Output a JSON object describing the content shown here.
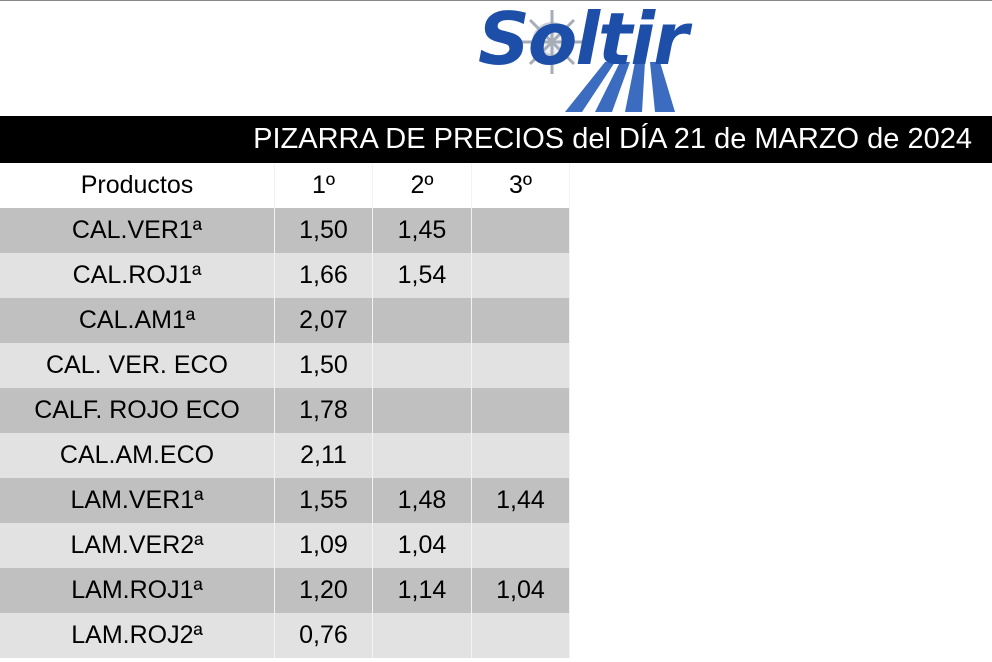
{
  "header": {
    "logo": "Soltir",
    "title": "PIZARRA DE PRECIOS del DÍA 21 de MARZO de 2024"
  },
  "table": {
    "columns": [
      "Productos",
      "1º",
      "2º",
      "3º"
    ],
    "rows": [
      [
        "CAL.VER1ª",
        "1,50",
        "1,45",
        null
      ],
      [
        "CAL.ROJ1ª",
        "1,66",
        "1,54",
        null
      ],
      [
        "CAL.AM1ª",
        "2,07",
        null,
        null
      ],
      [
        "CAL. VER. ECO",
        "1,50",
        null,
        null
      ],
      [
        "CALF. ROJO ECO",
        "1,78",
        null,
        null
      ],
      [
        "CAL.AM.ECO",
        "2,11",
        null,
        null
      ],
      [
        "LAM.VER1ª",
        "1,55",
        "1,48",
        "1,44"
      ],
      [
        "LAM.VER2ª",
        "1,09",
        "1,04",
        null
      ],
      [
        "LAM.ROJ1ª",
        "1,20",
        "1,14",
        "1,04"
      ],
      [
        "LAM.ROJ2ª",
        "0,76",
        null,
        null
      ]
    ]
  }
}
